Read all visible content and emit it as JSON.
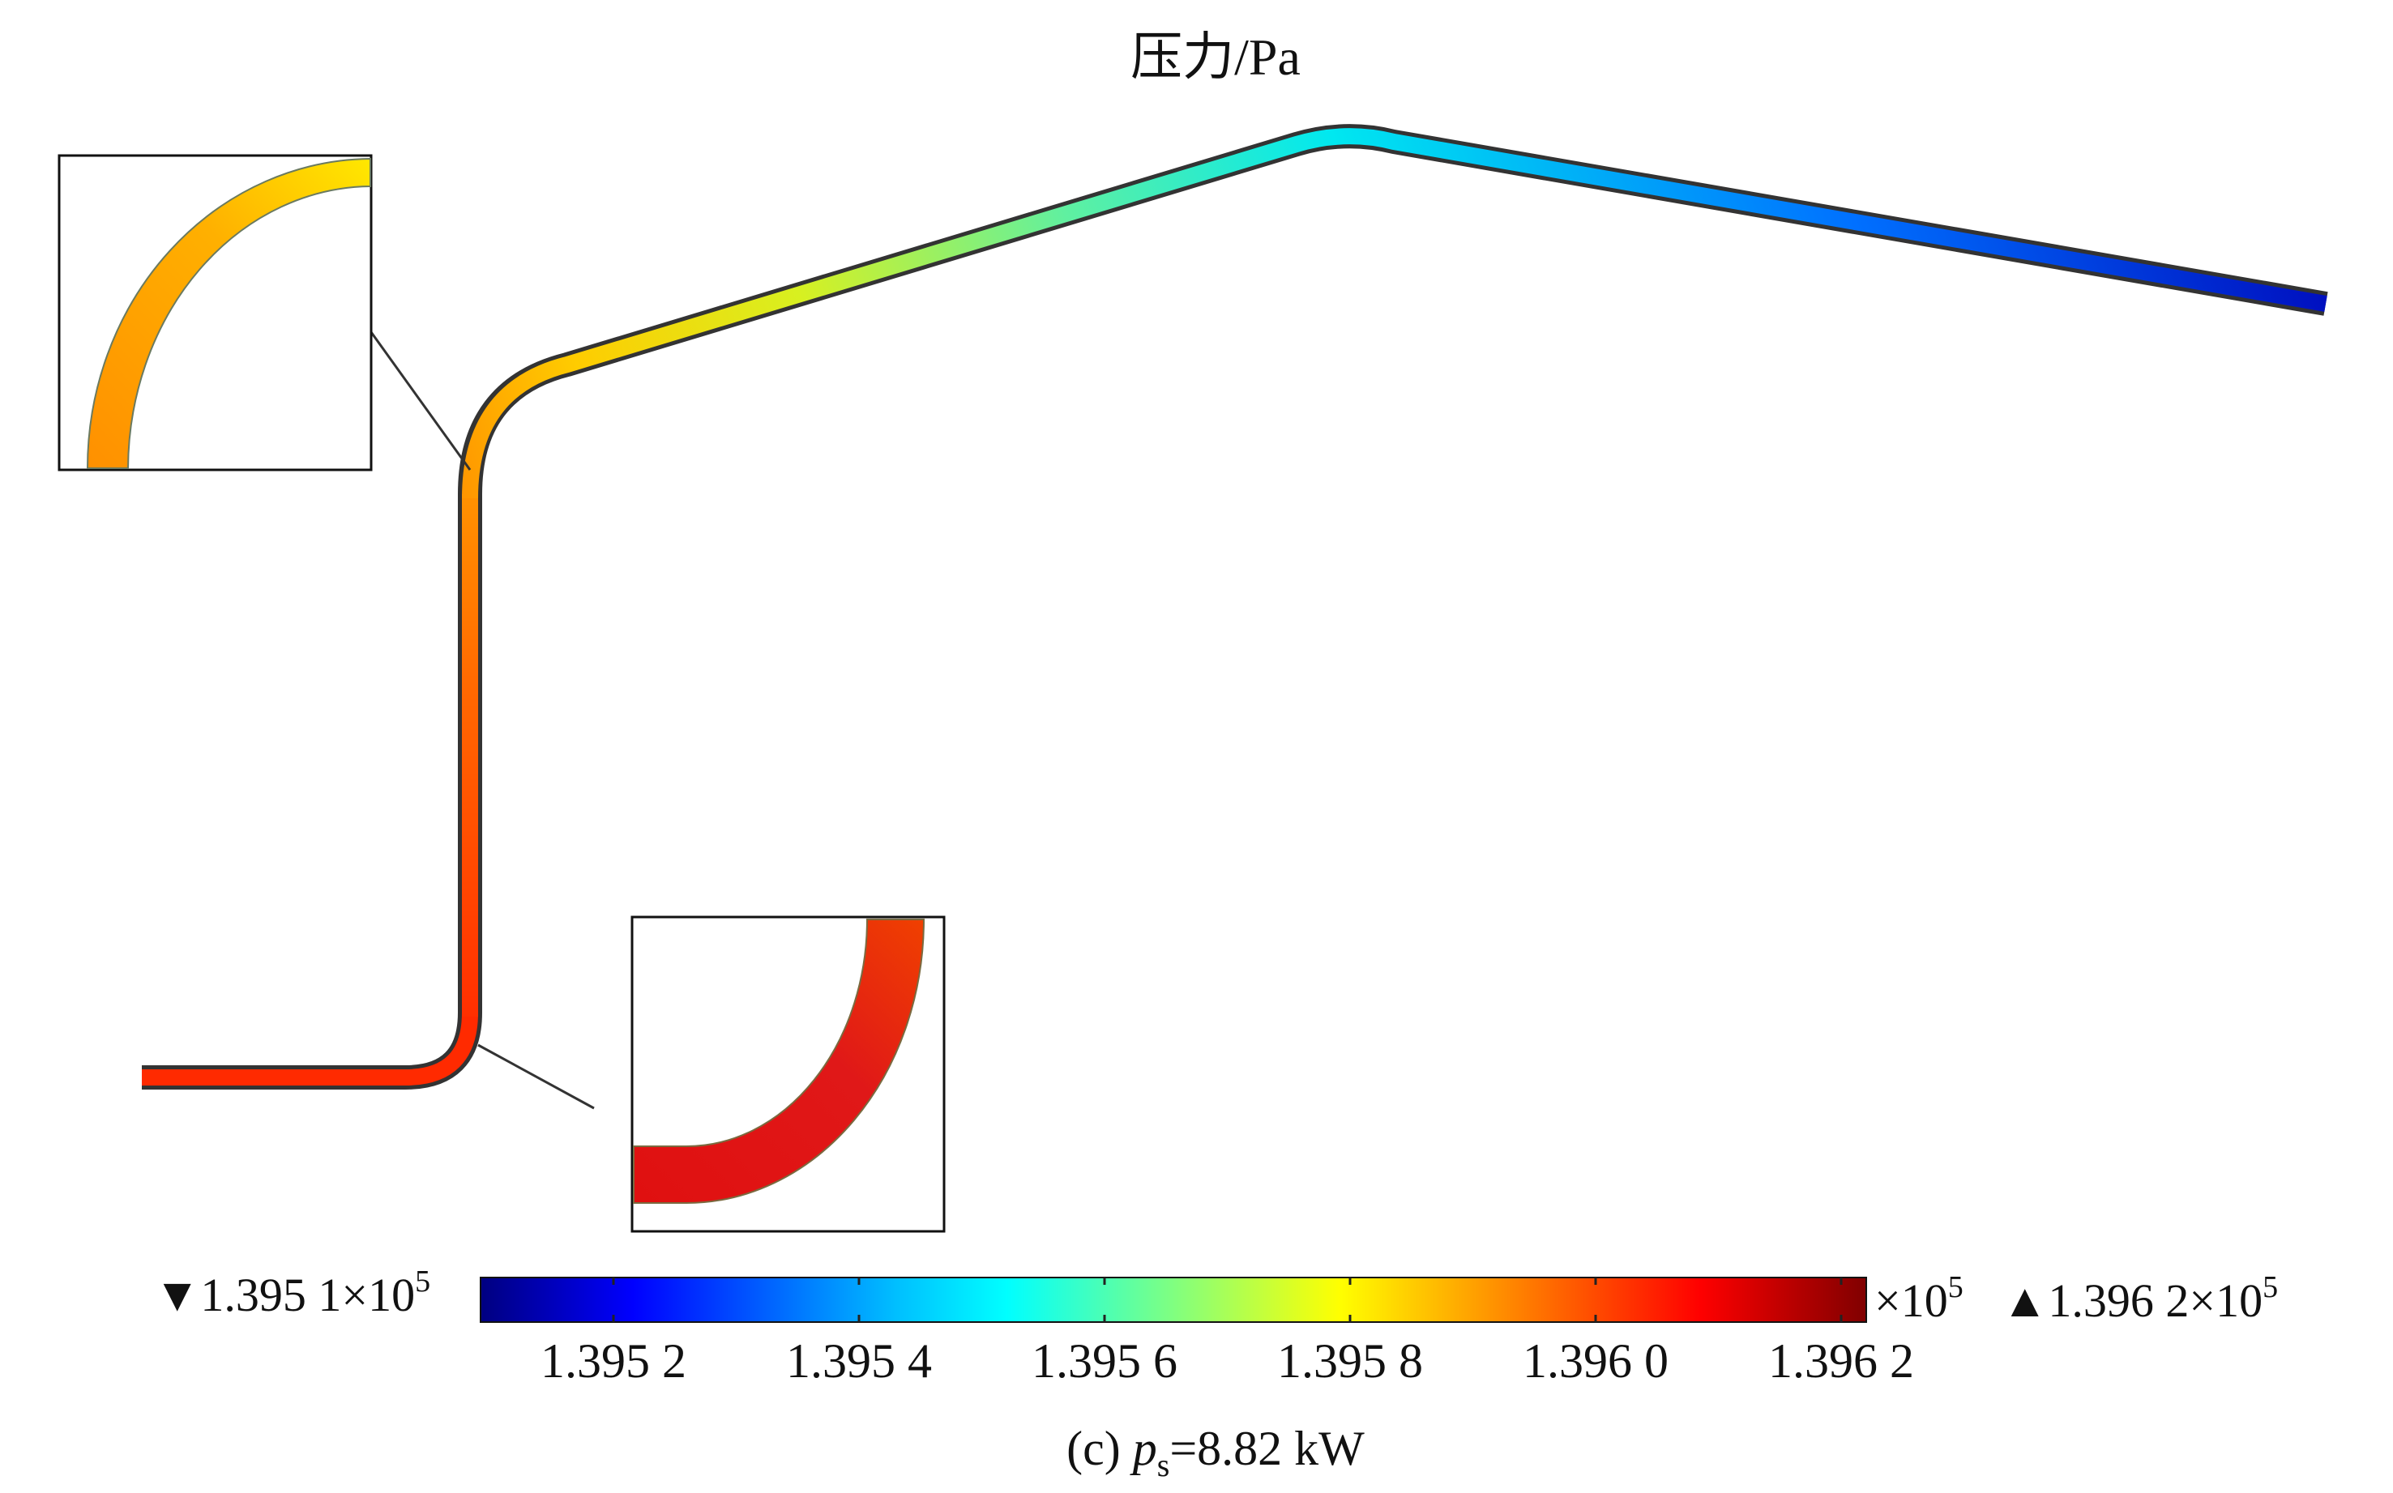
{
  "figure": {
    "title": "压力/Pa",
    "caption_prefix": "(c) ",
    "caption_var": "p",
    "caption_sub": "s",
    "caption_suffix": "=8.82 kW"
  },
  "colorbar": {
    "min_label_mantissa": "1.395 1×10",
    "max_label_mantissa": "1.396 2×10",
    "exponent": "5",
    "multiplier_label": "×10",
    "min_marker": "▼",
    "max_marker": "▲",
    "ticks": [
      "1.395 2",
      "1.395 4",
      "1.395 6",
      "1.395 8",
      "1.396 0",
      "1.396 2"
    ],
    "colors": [
      "#000080",
      "#0000ff",
      "#0080ff",
      "#00ffff",
      "#80ff80",
      "#ffff00",
      "#ff8000",
      "#ff0000",
      "#800000"
    ]
  }
}
